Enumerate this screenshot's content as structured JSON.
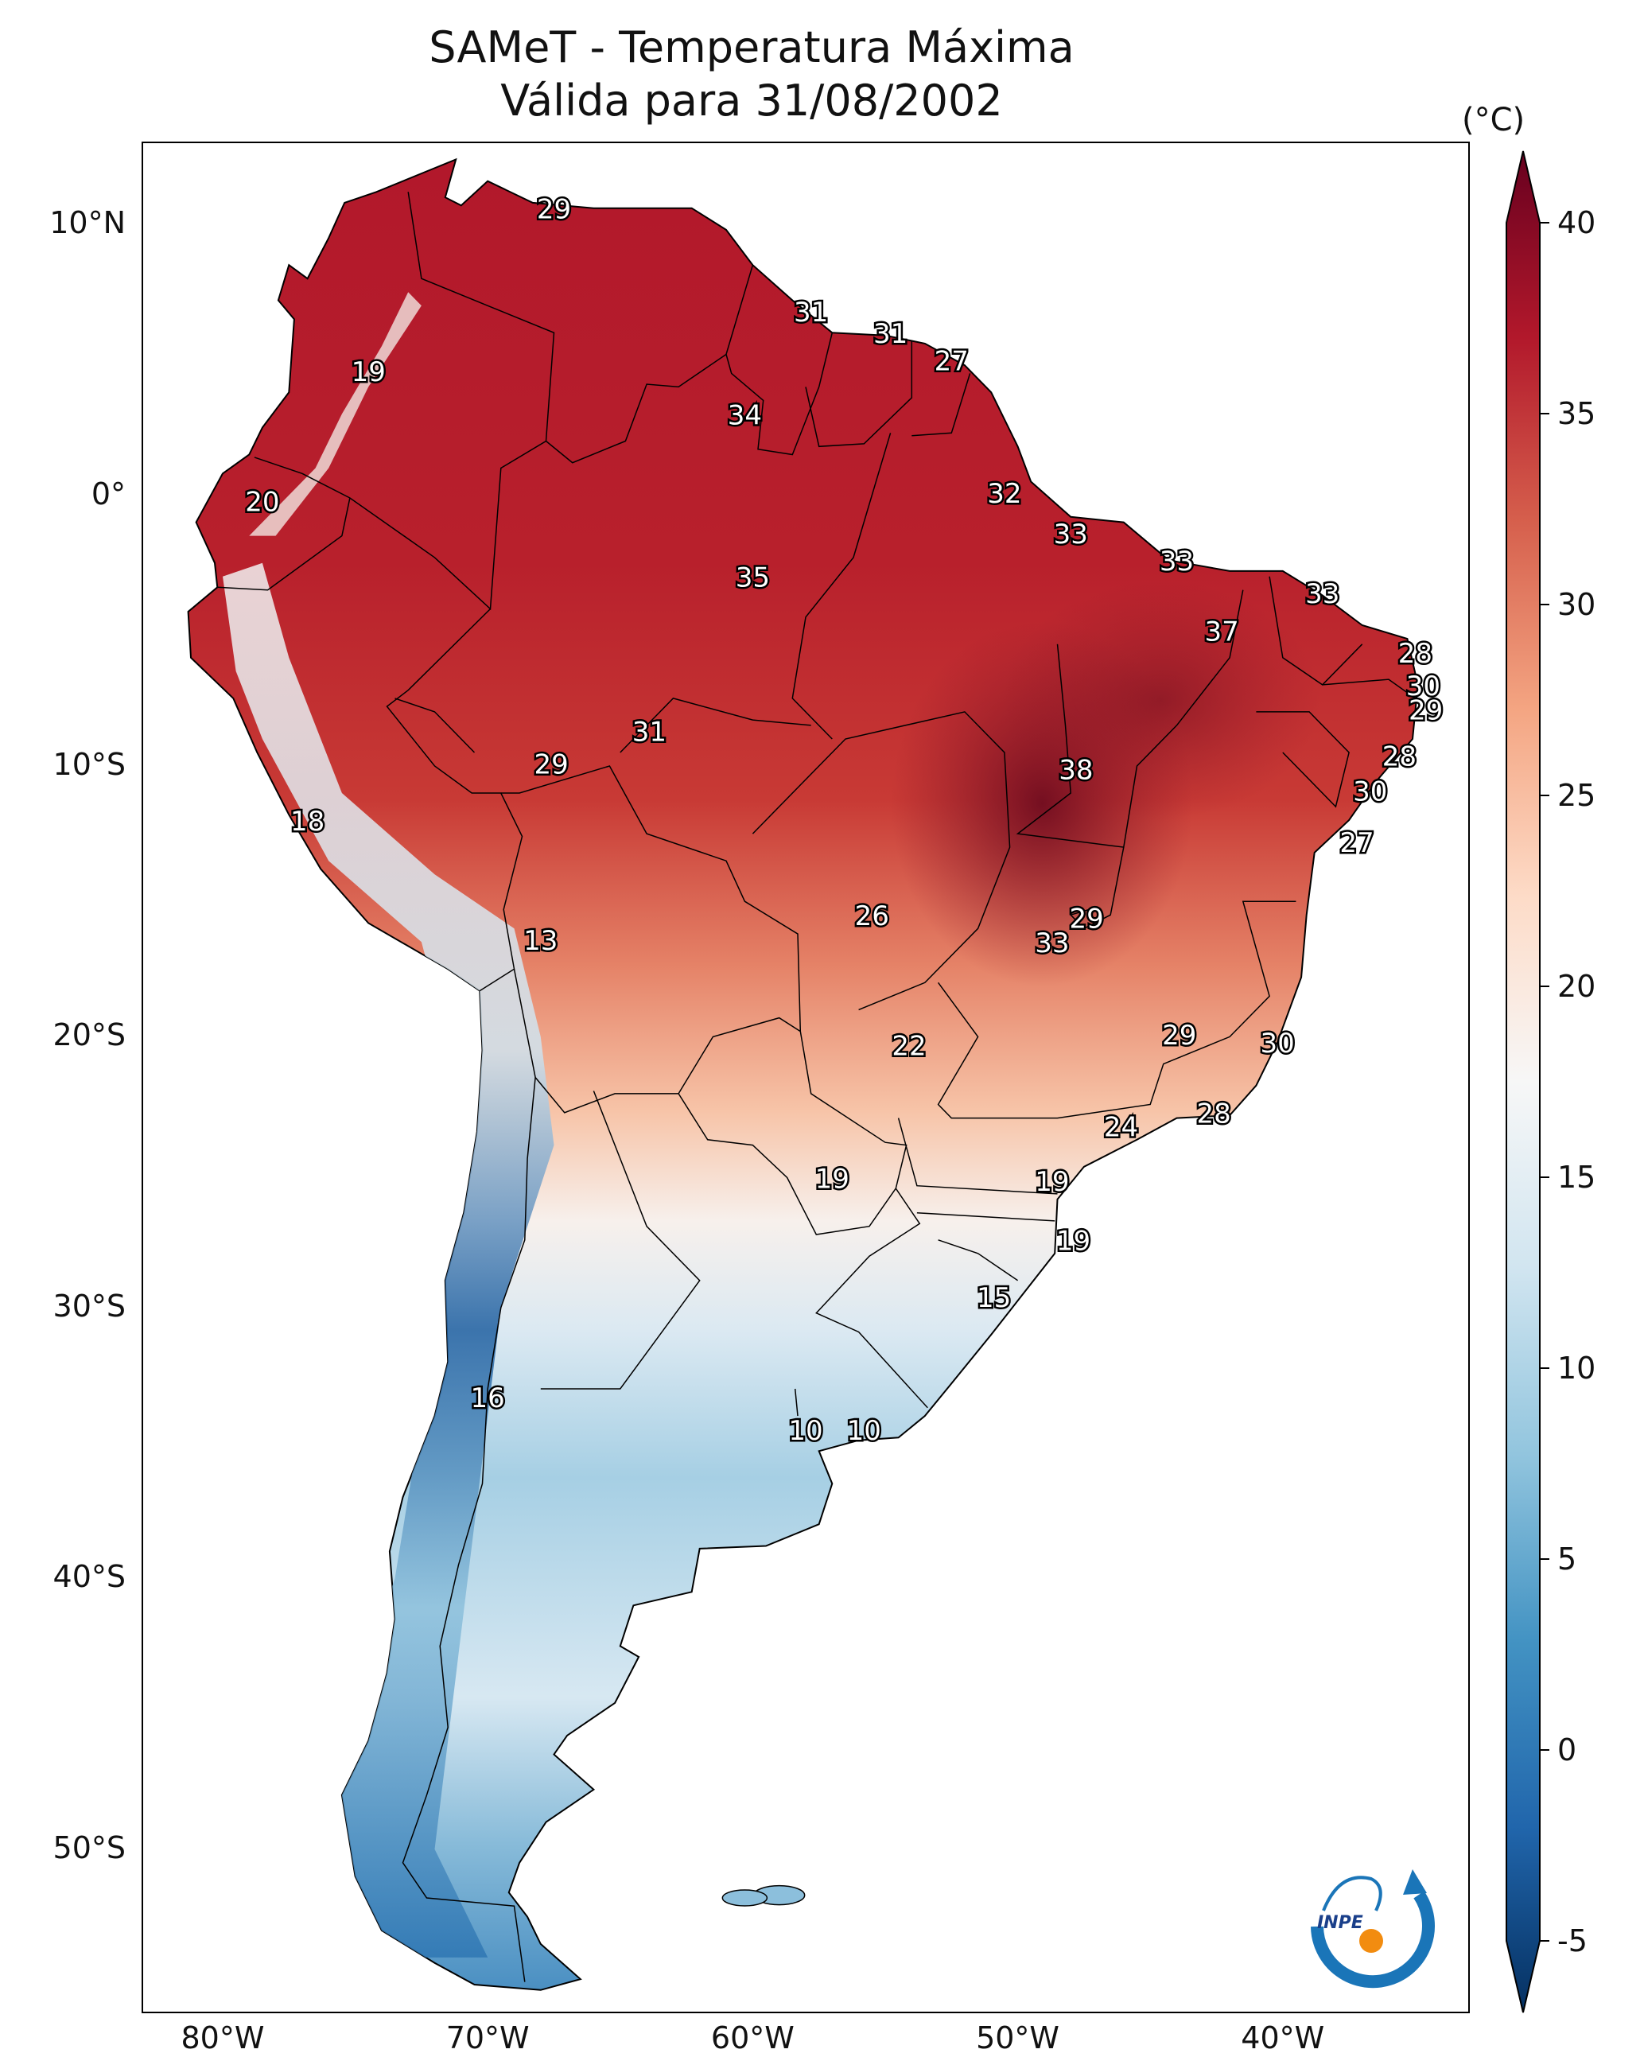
{
  "title": {
    "line1": "SAMeT - Temperatura Máxima",
    "line2": "Válida para 31/08/2002"
  },
  "axes": {
    "lon_ticks": [
      "80°W",
      "70°W",
      "60°W",
      "50°W",
      "40°W"
    ],
    "lat_ticks": [
      "10°N",
      "0°",
      "10°S",
      "20°S",
      "30°S",
      "40°S",
      "50°S"
    ],
    "lon_range": [
      -83,
      -33
    ],
    "lat_range": [
      -56,
      13
    ]
  },
  "colorbar": {
    "unit": "(°C)",
    "ticks": [
      "40",
      "35",
      "30",
      "25",
      "20",
      "15",
      "10",
      "5",
      "0",
      "-5"
    ],
    "range": [
      -5,
      40
    ],
    "colormap": "RdBu_r",
    "colors": [
      "#053061",
      "#2166ac",
      "#4393c3",
      "#92c5de",
      "#d1e5f0",
      "#f7f7f7",
      "#fddbc7",
      "#f4a582",
      "#d6604d",
      "#b2182b",
      "#67001f"
    ]
  },
  "station_labels": [
    {
      "value": "29",
      "lon": -67.5,
      "lat": 10.5
    },
    {
      "value": "19",
      "lon": -74.5,
      "lat": 4.5
    },
    {
      "value": "31",
      "lon": -57.8,
      "lat": 6.7
    },
    {
      "value": "31",
      "lon": -54.8,
      "lat": 5.9
    },
    {
      "value": "27",
      "lon": -52.5,
      "lat": 4.9
    },
    {
      "value": "34",
      "lon": -60.3,
      "lat": 2.9
    },
    {
      "value": "20",
      "lon": -78.5,
      "lat": -0.3
    },
    {
      "value": "32",
      "lon": -50.5,
      "lat": 0.0
    },
    {
      "value": "33",
      "lon": -48.0,
      "lat": -1.5
    },
    {
      "value": "35",
      "lon": -60.0,
      "lat": -3.1
    },
    {
      "value": "33",
      "lon": -44.0,
      "lat": -2.5
    },
    {
      "value": "33",
      "lon": -38.5,
      "lat": -3.7
    },
    {
      "value": "37",
      "lon": -42.3,
      "lat": -5.1
    },
    {
      "value": "28",
      "lon": -35.0,
      "lat": -5.9
    },
    {
      "value": "30",
      "lon": -34.7,
      "lat": -7.1
    },
    {
      "value": "29",
      "lon": -34.6,
      "lat": -8.0
    },
    {
      "value": "31",
      "lon": -63.9,
      "lat": -8.8
    },
    {
      "value": "29",
      "lon": -67.6,
      "lat": -10.0
    },
    {
      "value": "38",
      "lon": -47.8,
      "lat": -10.2
    },
    {
      "value": "28",
      "lon": -35.6,
      "lat": -9.7
    },
    {
      "value": "30",
      "lon": -36.7,
      "lat": -11.0
    },
    {
      "value": "18",
      "lon": -76.8,
      "lat": -12.1
    },
    {
      "value": "27",
      "lon": -37.2,
      "lat": -12.9
    },
    {
      "value": "26",
      "lon": -55.5,
      "lat": -15.6
    },
    {
      "value": "29",
      "lon": -47.4,
      "lat": -15.7
    },
    {
      "value": "13",
      "lon": -68.0,
      "lat": -16.5
    },
    {
      "value": "33",
      "lon": -48.7,
      "lat": -16.6
    },
    {
      "value": "22",
      "lon": -54.1,
      "lat": -20.4
    },
    {
      "value": "29",
      "lon": -43.9,
      "lat": -20.0
    },
    {
      "value": "30",
      "lon": -40.2,
      "lat": -20.3
    },
    {
      "value": "24",
      "lon": -46.1,
      "lat": -23.4
    },
    {
      "value": "28",
      "lon": -42.6,
      "lat": -22.9
    },
    {
      "value": "19",
      "lon": -57.0,
      "lat": -25.3
    },
    {
      "value": "19",
      "lon": -48.7,
      "lat": -25.4
    },
    {
      "value": "19",
      "lon": -47.9,
      "lat": -27.6
    },
    {
      "value": "15",
      "lon": -50.9,
      "lat": -29.7
    },
    {
      "value": "16",
      "lon": -70.0,
      "lat": -33.4
    },
    {
      "value": "10",
      "lon": -58.0,
      "lat": -34.6
    },
    {
      "value": "10",
      "lon": -55.8,
      "lat": -34.6
    }
  ],
  "logo": {
    "text": "INPE"
  }
}
